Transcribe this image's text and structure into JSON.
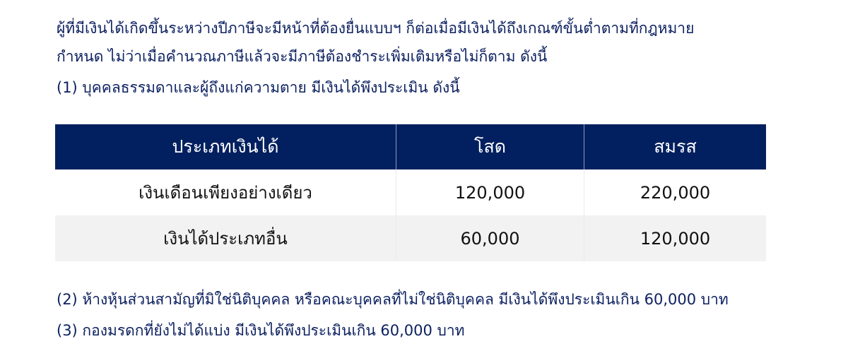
{
  "paragraphs": [
    "ผู้ที่มีเงินได้เกิดขึ้นระหว่างปีภาษีจะมีหน้าที่ต้องยื่นแบบฯ ก็ต่อเมื่อมีเงินได้ถึงเกณฑ์ขั้นต่ำตามที่กฎหมาย",
    "กำหนด ไม่ว่าเมื่อคำนวณภาษีแล้วจะมีภาษีต้องชำระเพิ่มเติมหรือไม่ก็ตาม ดังนี้",
    "(1) บุคคลธรรมดาและผู้ถึงแก่ความตาย มีเงินได้พึงประเมิน ดังนี้"
  ],
  "table": {
    "headers": [
      "ประเภทเงินได้",
      "โสด",
      "สมรส"
    ],
    "rows": [
      [
        "เงินเดือนเพียงอย่างเดียว",
        "120,000",
        "220,000"
      ],
      [
        "เงินได้ประเภทอื่น",
        "60,000",
        "120,000"
      ]
    ]
  },
  "notes": [
    "(2) ห้างหุ้นส่วนสามัญที่มิใช่นิติบุคคล หรือคณะบุคคลที่ไม่ใช่นิติบุคคล มีเงินได้พึงประเมินเกิน 60,000 บาท",
    "(3) กองมรดกที่ยังไม่ได้แบ่ง มีเงินได้พึงประเมินเกิน 60,000 บาท"
  ],
  "colors": {
    "header_bg": "#022060",
    "text": "#0d2160",
    "alt_row": "#f2f2f2"
  }
}
